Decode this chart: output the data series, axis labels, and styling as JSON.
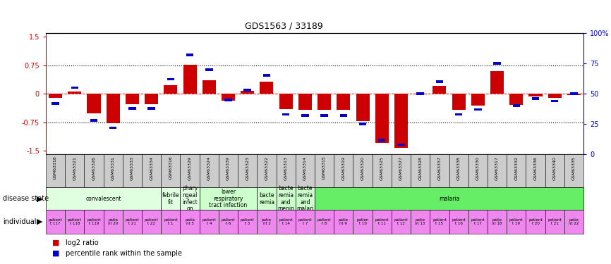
{
  "title": "GDS1563 / 33189",
  "samples": [
    "GSM63318",
    "GSM63321",
    "GSM63326",
    "GSM63331",
    "GSM63333",
    "GSM63334",
    "GSM63316",
    "GSM63329",
    "GSM63324",
    "GSM63339",
    "GSM63323",
    "GSM63322",
    "GSM63313",
    "GSM63314",
    "GSM63315",
    "GSM63319",
    "GSM63320",
    "GSM63325",
    "GSM63327",
    "GSM63328",
    "GSM63337",
    "GSM63338",
    "GSM63330",
    "GSM63317",
    "GSM63332",
    "GSM63336",
    "GSM63340",
    "GSM63335"
  ],
  "log2_ratio": [
    -0.1,
    0.05,
    -0.52,
    -0.78,
    -0.27,
    -0.27,
    0.22,
    0.77,
    0.35,
    -0.18,
    0.08,
    0.32,
    -0.4,
    -0.42,
    -0.42,
    -0.42,
    -0.72,
    -1.3,
    -1.42,
    -0.02,
    0.2,
    -0.42,
    -0.32,
    0.6,
    -0.3,
    -0.08,
    -0.1,
    -0.03
  ],
  "percentile_rank": [
    42,
    55,
    28,
    22,
    38,
    38,
    62,
    82,
    70,
    45,
    53,
    65,
    33,
    32,
    32,
    32,
    25,
    12,
    8,
    50,
    60,
    33,
    37,
    75,
    40,
    46,
    44,
    50
  ],
  "disease_state_groups": [
    {
      "label": "convalescent",
      "start": 0,
      "end": 5,
      "color": "#e0ffe0"
    },
    {
      "label": "febrile\nfit",
      "start": 6,
      "end": 6,
      "color": "#e0ffe0"
    },
    {
      "label": "phary\nngeal\ninfect\non",
      "start": 7,
      "end": 7,
      "color": "#e0ffe0"
    },
    {
      "label": "lower\nrespiratory\ntract infection",
      "start": 8,
      "end": 10,
      "color": "#ccffcc"
    },
    {
      "label": "bacte\nremia",
      "start": 11,
      "end": 11,
      "color": "#ccffcc"
    },
    {
      "label": "bacte\nremia\nand\nmenin",
      "start": 12,
      "end": 12,
      "color": "#ccffcc"
    },
    {
      "label": "bacte\nremia\nand\nmalari",
      "start": 13,
      "end": 13,
      "color": "#ccffcc"
    },
    {
      "label": "malaria",
      "start": 14,
      "end": 27,
      "color": "#66ee66"
    }
  ],
  "individual_labels": [
    "patient\nt 117",
    "patient\nt 118",
    "patient\nt 119",
    "patie\nnt 20",
    "patient\nt 21",
    "patient\nt 22",
    "patient\nt 1",
    "patie\nnt 5",
    "patient\nt 4",
    "patient\nt 6",
    "patient\nt 3",
    "patie\nnt 2",
    "patient\nt 14",
    "patient\nt 7",
    "patient\nt 8",
    "patie\nnt 9",
    "patien\nt 10",
    "patient\nt 11",
    "patient\nt 12",
    "patie\nnt 13",
    "patient\nt 15",
    "patient\nt 16",
    "patient\nt 17",
    "patie\nnt 18",
    "patient\nt 19",
    "patient\nt 20",
    "patient\nt 21",
    "patie\nnt 22"
  ],
  "bar_width": 0.7,
  "ylim": [
    -1.6,
    1.6
  ],
  "yticks_left": [
    -1.5,
    -0.75,
    0,
    0.75,
    1.5
  ],
  "yticks_right": [
    0,
    25,
    50,
    75,
    100
  ],
  "left_color": "#cc0000",
  "right_color": "#0000cc",
  "bg_sample_label": "#cccccc",
  "ind_color": "#ee88ee",
  "title_fontsize": 9,
  "bar_fontsize": 4.5,
  "ds_fontsize": 5.5,
  "ind_fontsize": 4.0,
  "legend_fontsize": 7
}
